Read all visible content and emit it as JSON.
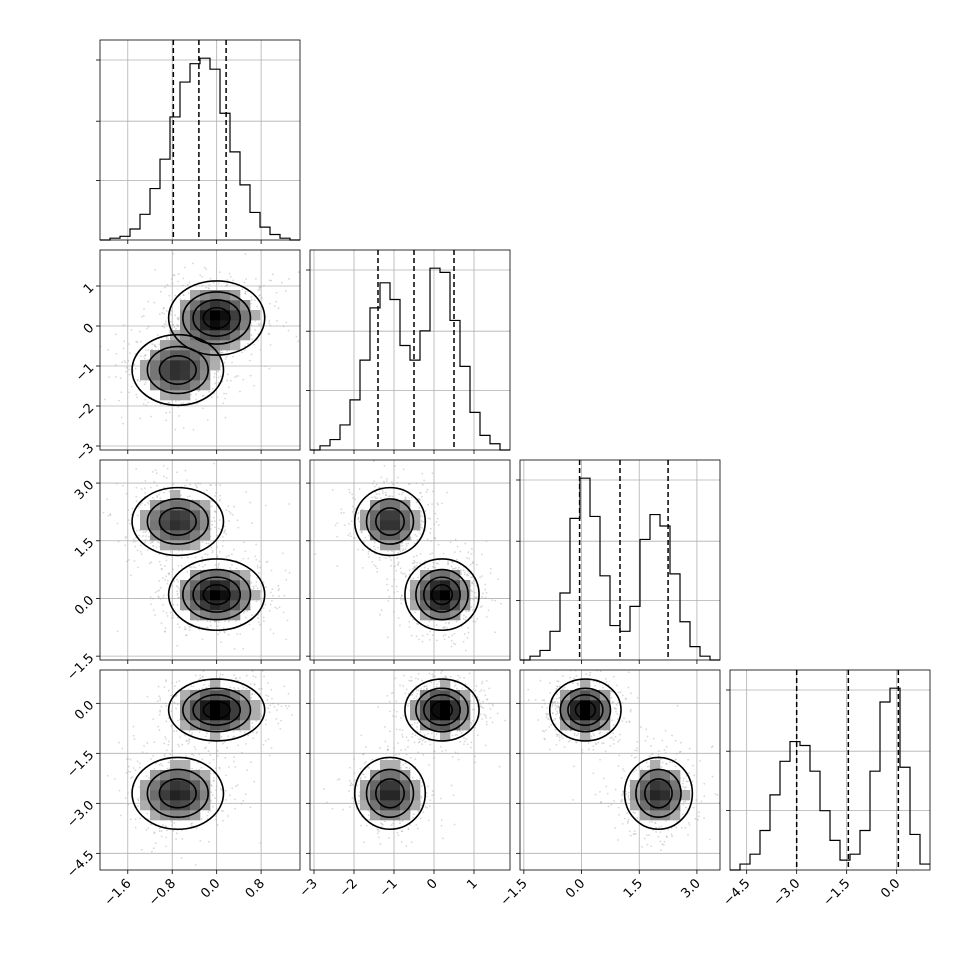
{
  "chart_data": {
    "type": "corner",
    "grid": true,
    "parameters": [
      {
        "range": [
          -2.1,
          1.5
        ],
        "ticks": [
          -1.6,
          -0.8,
          0.0,
          0.8
        ],
        "tick_labels": [
          "−1.6",
          "−0.8",
          "0.0",
          "0.8"
        ],
        "quantiles": [
          -0.78,
          -0.32,
          0.17
        ],
        "hist": {
          "edges": [
            -2.1,
            -1.92,
            -1.74,
            -1.56,
            -1.38,
            -1.2,
            -1.02,
            -0.84,
            -0.66,
            -0.48,
            -0.3,
            -0.12,
            0.06,
            0.24,
            0.42,
            0.6,
            0.78,
            0.96,
            1.14,
            1.32,
            1.5
          ],
          "counts": [
            0,
            1,
            2,
            6,
            14,
            28,
            44,
            67,
            86,
            96,
            99,
            93,
            69,
            48,
            30,
            15,
            7,
            3,
            1,
            0
          ]
        }
      },
      {
        "range": [
          -3.1,
          1.9
        ],
        "ticks": [
          -3,
          -2,
          -1,
          0,
          1
        ],
        "tick_labels": [
          "−3",
          "−2",
          "−1",
          "0",
          "1"
        ],
        "quantiles": [
          -1.4,
          -0.5,
          0.5
        ],
        "hist": {
          "edges": [
            -3.1,
            -2.85,
            -2.6,
            -2.35,
            -2.1,
            -1.85,
            -1.6,
            -1.35,
            -1.1,
            -0.85,
            -0.6,
            -0.35,
            -0.1,
            0.15,
            0.4,
            0.65,
            0.9,
            1.15,
            1.4,
            1.65,
            1.9
          ],
          "counts": [
            0,
            2,
            5,
            12,
            24,
            43,
            68,
            80,
            72,
            50,
            43,
            57,
            87,
            85,
            62,
            40,
            18,
            7,
            3,
            0
          ]
        }
      },
      {
        "range": [
          -1.6,
          3.6
        ],
        "ticks": [
          -1.5,
          0.0,
          1.5,
          3.0
        ],
        "tick_labels": [
          "−1.5",
          "0.0",
          "1.5",
          "3.0"
        ],
        "quantiles": [
          -0.05,
          1.0,
          2.25
        ],
        "hist": {
          "edges": [
            -1.6,
            -1.34,
            -1.08,
            -0.82,
            -0.56,
            -0.3,
            -0.04,
            0.22,
            0.48,
            0.74,
            1.0,
            1.26,
            1.52,
            1.78,
            2.04,
            2.3,
            2.56,
            2.82,
            3.08,
            3.34,
            3.6
          ],
          "counts": [
            0,
            2,
            5,
            15,
            35,
            74,
            95,
            75,
            44,
            18,
            15,
            28,
            63,
            76,
            70,
            45,
            20,
            7,
            2,
            0
          ]
        }
      },
      {
        "range": [
          -5.0,
          1.0
        ],
        "ticks": [
          -4.5,
          -3.0,
          -1.5,
          0.0
        ],
        "tick_labels": [
          "−4.5",
          "−3.0",
          "−1.5",
          "0.0"
        ],
        "quantiles": [
          -3.0,
          -1.45,
          0.05
        ],
        "hist": {
          "edges": [
            -5.0,
            -4.7,
            -4.4,
            -4.1,
            -3.8,
            -3.5,
            -3.2,
            -2.9,
            -2.6,
            -2.3,
            -2.0,
            -1.7,
            -1.4,
            -1.1,
            -0.8,
            -0.5,
            -0.2,
            0.1,
            0.4,
            0.7,
            1.0
          ],
          "counts": [
            0,
            3,
            8,
            20,
            38,
            55,
            65,
            63,
            50,
            30,
            15,
            5,
            8,
            20,
            50,
            85,
            92,
            52,
            18,
            3
          ]
        }
      }
    ],
    "modes": [
      {
        "center": [
          0.0,
          0.2,
          0.1,
          -0.2
        ],
        "sd": [
          0.42,
          0.45,
          0.45,
          0.45
        ],
        "weight": 0.55
      },
      {
        "center": [
          -0.7,
          -1.1,
          2.0,
          -2.7
        ],
        "sd": [
          0.42,
          0.45,
          0.45,
          0.55
        ],
        "weight": 0.45
      }
    ],
    "contour_levels": [
      0.12,
      0.35,
      0.6,
      0.85
    ]
  }
}
